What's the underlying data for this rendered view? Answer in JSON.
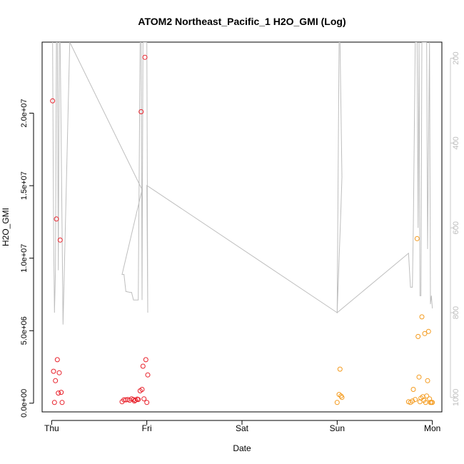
{
  "chart_data": {
    "type": "scatter",
    "title": "ATOM2 Northeast_Pacific_1 H2O_GMI (Log)",
    "xlabel": "Date",
    "ylabel": "H2O_GMI",
    "x_ticks": [
      "Thu",
      "Fri",
      "Sat",
      "Sun",
      "Mon"
    ],
    "y_ticks": [
      "0.0e+00",
      "5.0e+06",
      "1.0e+07",
      "1.5e+07",
      "2.0e+07"
    ],
    "y_tick_values": [
      0,
      5000000,
      10000000,
      15000000,
      20000000
    ],
    "ylim": [
      -600000,
      24900000
    ],
    "xlim": [
      -0.1,
      4.1
    ],
    "y2_ticks": [
      "200",
      "400",
      "600",
      "800",
      "1000"
    ],
    "y2_tick_values": [
      200,
      400,
      600,
      800,
      1000
    ],
    "y2lim": [
      1034,
      162
    ],
    "colors": {
      "series_red": "#e8202a",
      "series_orange": "#f49a1c",
      "line": "#bebebe",
      "axis": "#000000",
      "y2_axis": "#c8c8c8"
    },
    "series": [
      {
        "color": "#e8202a",
        "points": [
          [
            0.01,
            20850000
          ],
          [
            0.02,
            2200000
          ],
          [
            0.03,
            50000
          ],
          [
            0.04,
            1550000
          ],
          [
            0.05,
            12700000
          ],
          [
            0.06,
            3000000
          ],
          [
            0.07,
            700000
          ],
          [
            0.08,
            2100000
          ],
          [
            0.09,
            11250000
          ],
          [
            0.1,
            750000
          ],
          [
            0.11,
            50000
          ],
          [
            0.74,
            100000
          ],
          [
            0.76,
            230000
          ],
          [
            0.78,
            230000
          ],
          [
            0.8,
            250000
          ],
          [
            0.82,
            200000
          ],
          [
            0.84,
            300000
          ],
          [
            0.86,
            250000
          ],
          [
            0.87,
            150000
          ],
          [
            0.88,
            200000
          ],
          [
            0.9,
            280000
          ],
          [
            0.91,
            250000
          ],
          [
            0.93,
            850000
          ],
          [
            0.94,
            20100000
          ],
          [
            0.95,
            950000
          ],
          [
            0.96,
            2550000
          ],
          [
            0.97,
            300000
          ],
          [
            0.98,
            23850000
          ],
          [
            0.99,
            3000000
          ],
          [
            1.0,
            50000
          ],
          [
            1.01,
            1950000
          ]
        ]
      },
      {
        "color": "#f49a1c",
        "points": [
          [
            3.0,
            50000
          ],
          [
            3.02,
            600000
          ],
          [
            3.03,
            2350000
          ],
          [
            3.04,
            500000
          ],
          [
            3.05,
            400000
          ],
          [
            3.75,
            100000
          ],
          [
            3.77,
            50000
          ],
          [
            3.79,
            150000
          ],
          [
            3.8,
            950000
          ],
          [
            3.82,
            250000
          ],
          [
            3.84,
            11350000
          ],
          [
            3.85,
            4600000
          ],
          [
            3.86,
            1800000
          ],
          [
            3.87,
            100000
          ],
          [
            3.88,
            350000
          ],
          [
            3.89,
            5950000
          ],
          [
            3.9,
            450000
          ],
          [
            3.91,
            200000
          ],
          [
            3.92,
            4800000
          ],
          [
            3.93,
            50000
          ],
          [
            3.94,
            500000
          ],
          [
            3.95,
            1550000
          ],
          [
            3.96,
            4950000
          ],
          [
            3.97,
            300000
          ],
          [
            3.98,
            50000
          ],
          [
            3.99,
            50000
          ],
          [
            4.0,
            50000
          ]
        ]
      }
    ],
    "pressure_line": [
      [
        0.005,
        162
      ],
      [
        0.01,
        162
      ],
      [
        0.02,
        600
      ],
      [
        0.03,
        800
      ],
      [
        0.04,
        700
      ],
      [
        0.05,
        162
      ],
      [
        0.06,
        162
      ],
      [
        0.07,
        700
      ],
      [
        0.08,
        162
      ],
      [
        0.09,
        162
      ],
      [
        0.12,
        828
      ],
      [
        0.19,
        162
      ],
      [
        0.95,
        510
      ],
      [
        0.74,
        710
      ],
      [
        0.76,
        710
      ],
      [
        0.78,
        750
      ],
      [
        0.82,
        752
      ],
      [
        0.84,
        752
      ],
      [
        0.86,
        770
      ],
      [
        0.87,
        770
      ],
      [
        0.88,
        770
      ],
      [
        0.9,
        770
      ],
      [
        0.91,
        770
      ],
      [
        0.93,
        162
      ],
      [
        0.94,
        162
      ],
      [
        0.95,
        770
      ],
      [
        0.96,
        162
      ],
      [
        0.97,
        162
      ],
      [
        0.98,
        162
      ],
      [
        0.99,
        162
      ],
      [
        1.0,
        162
      ],
      [
        1.01,
        800
      ],
      [
        1.0,
        500
      ],
      [
        3.0,
        800
      ],
      [
        3.02,
        162
      ],
      [
        3.03,
        162
      ],
      [
        3.05,
        480
      ],
      [
        3.04,
        550
      ],
      [
        3.0,
        800
      ],
      [
        3.75,
        660
      ],
      [
        3.77,
        740
      ],
      [
        3.79,
        740
      ],
      [
        3.8,
        600
      ],
      [
        3.82,
        162
      ],
      [
        3.84,
        162
      ],
      [
        3.85,
        600
      ],
      [
        3.86,
        162
      ],
      [
        3.87,
        760
      ],
      [
        3.88,
        760
      ],
      [
        3.89,
        162
      ],
      [
        3.9,
        162
      ],
      [
        3.92,
        162
      ],
      [
        3.94,
        162
      ],
      [
        3.95,
        650
      ],
      [
        3.97,
        162
      ],
      [
        3.98,
        780
      ],
      [
        3.99,
        760
      ],
      [
        4.0,
        790
      ]
    ],
    "grid": false,
    "legend": "none"
  }
}
